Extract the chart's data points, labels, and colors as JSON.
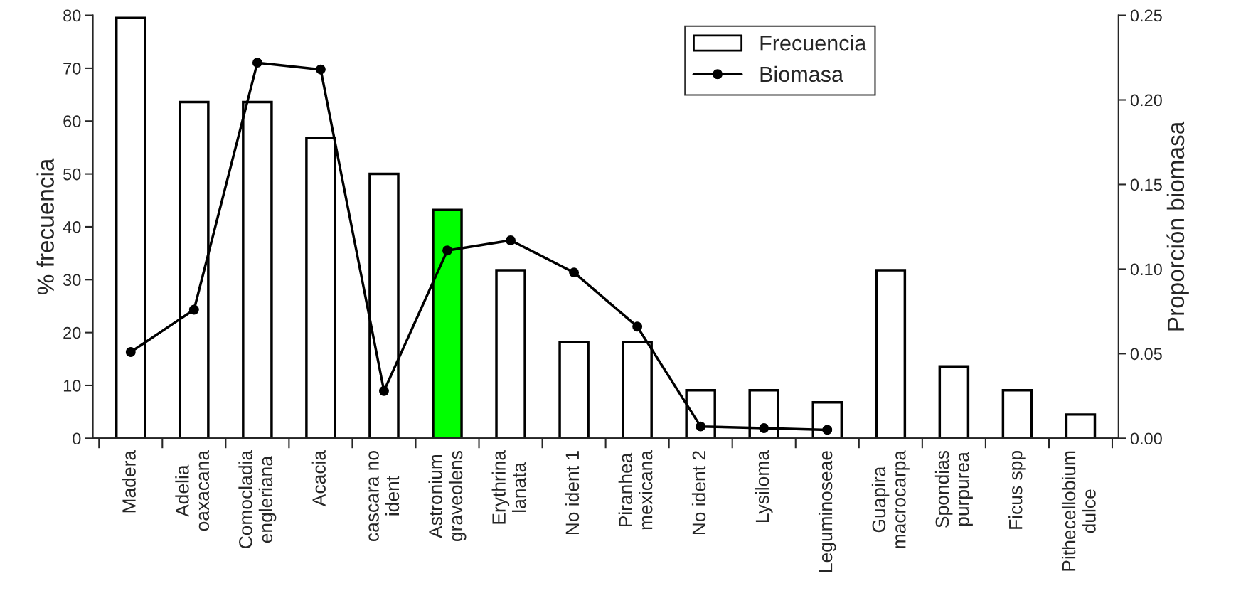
{
  "chart_data": {
    "type": "bar",
    "ylabel": "% frecuencia",
    "y2label": "Proporción biomasa",
    "categories": [
      "Madera",
      "Adelia\noaxacana",
      "Comocladia\nengleriana",
      "Acacia",
      "cascara no\nident",
      "Astronium\ngraveolens",
      "Erythrina\nlanata",
      "No ident 1",
      "Piranhea\nmexicana",
      "No ident 2",
      "Lysiloma",
      "Leguminoseae",
      "Guapira\nmacrocarpa",
      "Spondias\npurpurea",
      "Ficus spp",
      "Pithecellobium\ndulce"
    ],
    "series": [
      {
        "name": "Frecuencia",
        "color": "#ffffff",
        "colors": [
          "#ffffff",
          "#ffffff",
          "#ffffff",
          "#ffffff",
          "#ffffff",
          "#00ff00",
          "#ffffff",
          "#ffffff",
          "#ffffff",
          "#ffffff",
          "#ffffff",
          "#ffffff",
          "#ffffff",
          "#ffffff",
          "#ffffff",
          "#ffffff"
        ],
        "values": [
          79.5,
          63.6,
          63.6,
          56.8,
          50,
          43.2,
          31.8,
          18.2,
          18.2,
          9.1,
          9.1,
          6.8,
          31.8,
          13.6,
          9.1,
          4.5
        ]
      },
      {
        "name": "Biomasa",
        "type": "line",
        "axis": "y2",
        "color": "#000000",
        "marker": "circle",
        "values": [
          0.051,
          0.076,
          0.222,
          0.218,
          0.028,
          0.111,
          0.117,
          0.098,
          0.066,
          0.007,
          0.006,
          0.005,
          null,
          null,
          null,
          null
        ]
      }
    ],
    "ylim": [
      0,
      80
    ],
    "yticks": [
      0,
      10,
      20,
      30,
      40,
      50,
      60,
      70,
      80
    ],
    "y2lim": [
      0,
      0.25
    ],
    "y2ticks": [
      {
        "value": 0,
        "label": "0.00"
      },
      {
        "value": 0.05,
        "label": "0.05"
      },
      {
        "value": 0.1,
        "label": "0.10"
      },
      {
        "value": 0.15,
        "label": "0.15"
      },
      {
        "value": 0.2,
        "label": "0.20"
      },
      {
        "value": 0.25,
        "label": "0.25"
      }
    ],
    "legend": "top",
    "grid": false
  }
}
